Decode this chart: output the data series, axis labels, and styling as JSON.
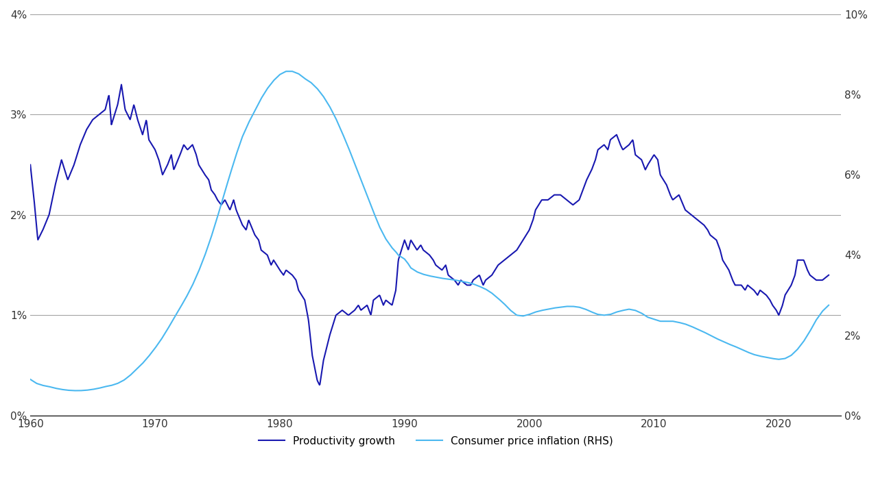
{
  "prod_color": "#1818b0",
  "cpi_color": "#4ab8f0",
  "xlim": [
    1960,
    2025
  ],
  "ylim_left": [
    0,
    0.04
  ],
  "ylim_right": [
    0,
    0.1
  ],
  "yticks_left": [
    0.0,
    0.01,
    0.02,
    0.03,
    0.04
  ],
  "yticks_right": [
    0.0,
    0.02,
    0.04,
    0.06,
    0.08,
    0.1
  ],
  "xticks": [
    1960,
    1970,
    1980,
    1990,
    2000,
    2010,
    2020
  ],
  "legend_labels": [
    "Productivity growth",
    "Consumer price inflation (RHS)"
  ],
  "background_color": "#ffffff",
  "grid_color": "#999999",
  "prod_linewidth": 1.5,
  "cpi_linewidth": 1.5,
  "prod_knots": [
    [
      1960.0,
      0.025
    ],
    [
      1960.3,
      0.0215
    ],
    [
      1960.6,
      0.0175
    ],
    [
      1961.0,
      0.0185
    ],
    [
      1961.5,
      0.02
    ],
    [
      1962.0,
      0.023
    ],
    [
      1962.5,
      0.0255
    ],
    [
      1963.0,
      0.0235
    ],
    [
      1963.5,
      0.025
    ],
    [
      1964.0,
      0.027
    ],
    [
      1964.5,
      0.0285
    ],
    [
      1965.0,
      0.0295
    ],
    [
      1965.5,
      0.03
    ],
    [
      1966.0,
      0.0305
    ],
    [
      1966.3,
      0.032
    ],
    [
      1966.5,
      0.029
    ],
    [
      1967.0,
      0.031
    ],
    [
      1967.3,
      0.033
    ],
    [
      1967.6,
      0.0305
    ],
    [
      1968.0,
      0.0295
    ],
    [
      1968.3,
      0.031
    ],
    [
      1968.6,
      0.0295
    ],
    [
      1969.0,
      0.028
    ],
    [
      1969.3,
      0.0295
    ],
    [
      1969.5,
      0.0275
    ],
    [
      1970.0,
      0.0265
    ],
    [
      1970.3,
      0.0255
    ],
    [
      1970.6,
      0.024
    ],
    [
      1971.0,
      0.025
    ],
    [
      1971.3,
      0.026
    ],
    [
      1971.5,
      0.0245
    ],
    [
      1972.0,
      0.026
    ],
    [
      1972.3,
      0.027
    ],
    [
      1972.6,
      0.0265
    ],
    [
      1973.0,
      0.027
    ],
    [
      1973.3,
      0.026
    ],
    [
      1973.5,
      0.025
    ],
    [
      1974.0,
      0.024
    ],
    [
      1974.3,
      0.0235
    ],
    [
      1974.5,
      0.0225
    ],
    [
      1974.8,
      0.022
    ],
    [
      1975.0,
      0.0215
    ],
    [
      1975.3,
      0.021
    ],
    [
      1975.6,
      0.0215
    ],
    [
      1976.0,
      0.0205
    ],
    [
      1976.3,
      0.0215
    ],
    [
      1976.5,
      0.0205
    ],
    [
      1977.0,
      0.019
    ],
    [
      1977.3,
      0.0185
    ],
    [
      1977.5,
      0.0195
    ],
    [
      1978.0,
      0.018
    ],
    [
      1978.3,
      0.0175
    ],
    [
      1978.5,
      0.0165
    ],
    [
      1979.0,
      0.016
    ],
    [
      1979.3,
      0.015
    ],
    [
      1979.5,
      0.0155
    ],
    [
      1980.0,
      0.0145
    ],
    [
      1980.3,
      0.014
    ],
    [
      1980.5,
      0.0145
    ],
    [
      1981.0,
      0.014
    ],
    [
      1981.3,
      0.0135
    ],
    [
      1981.5,
      0.0125
    ],
    [
      1982.0,
      0.0115
    ],
    [
      1982.3,
      0.0095
    ],
    [
      1982.6,
      0.006
    ],
    [
      1983.0,
      0.0035
    ],
    [
      1983.2,
      0.003
    ],
    [
      1983.5,
      0.0055
    ],
    [
      1984.0,
      0.008
    ],
    [
      1984.5,
      0.01
    ],
    [
      1985.0,
      0.0105
    ],
    [
      1985.5,
      0.01
    ],
    [
      1986.0,
      0.0105
    ],
    [
      1986.3,
      0.011
    ],
    [
      1986.5,
      0.0105
    ],
    [
      1987.0,
      0.011
    ],
    [
      1987.3,
      0.01
    ],
    [
      1987.5,
      0.0115
    ],
    [
      1988.0,
      0.012
    ],
    [
      1988.3,
      0.011
    ],
    [
      1988.5,
      0.0115
    ],
    [
      1989.0,
      0.011
    ],
    [
      1989.3,
      0.0125
    ],
    [
      1989.5,
      0.0155
    ],
    [
      1990.0,
      0.0175
    ],
    [
      1990.3,
      0.0165
    ],
    [
      1990.5,
      0.0175
    ],
    [
      1991.0,
      0.0165
    ],
    [
      1991.3,
      0.017
    ],
    [
      1991.5,
      0.0165
    ],
    [
      1992.0,
      0.016
    ],
    [
      1992.3,
      0.0155
    ],
    [
      1992.5,
      0.015
    ],
    [
      1993.0,
      0.0145
    ],
    [
      1993.3,
      0.015
    ],
    [
      1993.5,
      0.014
    ],
    [
      1994.0,
      0.0135
    ],
    [
      1994.3,
      0.013
    ],
    [
      1994.5,
      0.0135
    ],
    [
      1995.0,
      0.013
    ],
    [
      1995.3,
      0.013
    ],
    [
      1995.5,
      0.0135
    ],
    [
      1996.0,
      0.014
    ],
    [
      1996.3,
      0.013
    ],
    [
      1996.5,
      0.0135
    ],
    [
      1997.0,
      0.014
    ],
    [
      1997.5,
      0.015
    ],
    [
      1998.0,
      0.0155
    ],
    [
      1998.5,
      0.016
    ],
    [
      1999.0,
      0.0165
    ],
    [
      1999.5,
      0.0175
    ],
    [
      2000.0,
      0.0185
    ],
    [
      2000.3,
      0.0195
    ],
    [
      2000.5,
      0.0205
    ],
    [
      2001.0,
      0.0215
    ],
    [
      2001.5,
      0.0215
    ],
    [
      2002.0,
      0.022
    ],
    [
      2002.5,
      0.022
    ],
    [
      2003.0,
      0.0215
    ],
    [
      2003.5,
      0.021
    ],
    [
      2004.0,
      0.0215
    ],
    [
      2004.3,
      0.0225
    ],
    [
      2004.6,
      0.0235
    ],
    [
      2005.0,
      0.0245
    ],
    [
      2005.3,
      0.0255
    ],
    [
      2005.5,
      0.0265
    ],
    [
      2006.0,
      0.027
    ],
    [
      2006.3,
      0.0265
    ],
    [
      2006.5,
      0.0275
    ],
    [
      2007.0,
      0.028
    ],
    [
      2007.3,
      0.027
    ],
    [
      2007.5,
      0.0265
    ],
    [
      2008.0,
      0.027
    ],
    [
      2008.3,
      0.0275
    ],
    [
      2008.5,
      0.026
    ],
    [
      2009.0,
      0.0255
    ],
    [
      2009.3,
      0.0245
    ],
    [
      2009.5,
      0.025
    ],
    [
      2010.0,
      0.026
    ],
    [
      2010.3,
      0.0255
    ],
    [
      2010.5,
      0.024
    ],
    [
      2011.0,
      0.023
    ],
    [
      2011.3,
      0.022
    ],
    [
      2011.5,
      0.0215
    ],
    [
      2012.0,
      0.022
    ],
    [
      2012.5,
      0.0205
    ],
    [
      2013.0,
      0.02
    ],
    [
      2013.5,
      0.0195
    ],
    [
      2014.0,
      0.019
    ],
    [
      2014.3,
      0.0185
    ],
    [
      2014.5,
      0.018
    ],
    [
      2015.0,
      0.0175
    ],
    [
      2015.3,
      0.0165
    ],
    [
      2015.5,
      0.0155
    ],
    [
      2016.0,
      0.0145
    ],
    [
      2016.3,
      0.0135
    ],
    [
      2016.5,
      0.013
    ],
    [
      2017.0,
      0.013
    ],
    [
      2017.3,
      0.0125
    ],
    [
      2017.5,
      0.013
    ],
    [
      2018.0,
      0.0125
    ],
    [
      2018.3,
      0.012
    ],
    [
      2018.5,
      0.0125
    ],
    [
      2019.0,
      0.012
    ],
    [
      2019.3,
      0.0115
    ],
    [
      2019.5,
      0.011
    ],
    [
      2019.8,
      0.0105
    ],
    [
      2020.0,
      0.01
    ],
    [
      2020.3,
      0.011
    ],
    [
      2020.5,
      0.012
    ],
    [
      2021.0,
      0.013
    ],
    [
      2021.3,
      0.014
    ],
    [
      2021.5,
      0.0155
    ],
    [
      2022.0,
      0.0155
    ],
    [
      2022.3,
      0.0145
    ],
    [
      2022.5,
      0.014
    ],
    [
      2023.0,
      0.0135
    ],
    [
      2023.5,
      0.0135
    ],
    [
      2024.0,
      0.014
    ]
  ],
  "cpi_knots": [
    [
      1960.0,
      0.009
    ],
    [
      1960.5,
      0.008
    ],
    [
      1961.0,
      0.0075
    ],
    [
      1961.5,
      0.0072
    ],
    [
      1962.0,
      0.0068
    ],
    [
      1962.5,
      0.0065
    ],
    [
      1963.0,
      0.0063
    ],
    [
      1963.5,
      0.0062
    ],
    [
      1964.0,
      0.0062
    ],
    [
      1964.5,
      0.0063
    ],
    [
      1965.0,
      0.0065
    ],
    [
      1965.5,
      0.0068
    ],
    [
      1966.0,
      0.0072
    ],
    [
      1966.5,
      0.0075
    ],
    [
      1967.0,
      0.008
    ],
    [
      1967.5,
      0.0088
    ],
    [
      1968.0,
      0.01
    ],
    [
      1968.5,
      0.0115
    ],
    [
      1969.0,
      0.013
    ],
    [
      1969.5,
      0.0148
    ],
    [
      1970.0,
      0.0168
    ],
    [
      1970.5,
      0.019
    ],
    [
      1971.0,
      0.0215
    ],
    [
      1971.5,
      0.0242
    ],
    [
      1972.0,
      0.0268
    ],
    [
      1972.5,
      0.0295
    ],
    [
      1973.0,
      0.0325
    ],
    [
      1973.5,
      0.036
    ],
    [
      1974.0,
      0.04
    ],
    [
      1974.5,
      0.0445
    ],
    [
      1975.0,
      0.0495
    ],
    [
      1975.5,
      0.0548
    ],
    [
      1976.0,
      0.06
    ],
    [
      1976.5,
      0.065
    ],
    [
      1977.0,
      0.0695
    ],
    [
      1977.5,
      0.073
    ],
    [
      1978.0,
      0.076
    ],
    [
      1978.5,
      0.079
    ],
    [
      1979.0,
      0.0815
    ],
    [
      1979.5,
      0.0835
    ],
    [
      1980.0,
      0.085
    ],
    [
      1980.5,
      0.0858
    ],
    [
      1981.0,
      0.0858
    ],
    [
      1981.5,
      0.0852
    ],
    [
      1982.0,
      0.084
    ],
    [
      1982.5,
      0.083
    ],
    [
      1983.0,
      0.0815
    ],
    [
      1983.5,
      0.0795
    ],
    [
      1984.0,
      0.077
    ],
    [
      1984.5,
      0.074
    ],
    [
      1985.0,
      0.0705
    ],
    [
      1985.5,
      0.0668
    ],
    [
      1986.0,
      0.0628
    ],
    [
      1986.5,
      0.0588
    ],
    [
      1987.0,
      0.0548
    ],
    [
      1987.5,
      0.0508
    ],
    [
      1988.0,
      0.047
    ],
    [
      1988.5,
      0.044
    ],
    [
      1989.0,
      0.0418
    ],
    [
      1989.3,
      0.0408
    ],
    [
      1989.5,
      0.04
    ],
    [
      1990.0,
      0.039
    ],
    [
      1990.3,
      0.0378
    ],
    [
      1990.5,
      0.0368
    ],
    [
      1991.0,
      0.0358
    ],
    [
      1991.5,
      0.0352
    ],
    [
      1992.0,
      0.0348
    ],
    [
      1992.5,
      0.0345
    ],
    [
      1993.0,
      0.0342
    ],
    [
      1993.5,
      0.034
    ],
    [
      1994.0,
      0.0338
    ],
    [
      1994.5,
      0.0335
    ],
    [
      1995.0,
      0.0332
    ],
    [
      1995.5,
      0.0328
    ],
    [
      1996.0,
      0.0322
    ],
    [
      1996.5,
      0.0315
    ],
    [
      1997.0,
      0.0305
    ],
    [
      1997.5,
      0.0292
    ],
    [
      1998.0,
      0.0278
    ],
    [
      1998.5,
      0.0262
    ],
    [
      1999.0,
      0.025
    ],
    [
      1999.5,
      0.0248
    ],
    [
      2000.0,
      0.0252
    ],
    [
      2000.5,
      0.0258
    ],
    [
      2001.0,
      0.0262
    ],
    [
      2001.5,
      0.0265
    ],
    [
      2002.0,
      0.0268
    ],
    [
      2002.5,
      0.027
    ],
    [
      2003.0,
      0.0272
    ],
    [
      2003.5,
      0.0272
    ],
    [
      2004.0,
      0.027
    ],
    [
      2004.5,
      0.0265
    ],
    [
      2005.0,
      0.0258
    ],
    [
      2005.5,
      0.0252
    ],
    [
      2006.0,
      0.025
    ],
    [
      2006.5,
      0.0252
    ],
    [
      2007.0,
      0.0258
    ],
    [
      2007.5,
      0.0262
    ],
    [
      2008.0,
      0.0265
    ],
    [
      2008.5,
      0.0262
    ],
    [
      2009.0,
      0.0255
    ],
    [
      2009.5,
      0.0245
    ],
    [
      2010.0,
      0.024
    ],
    [
      2010.5,
      0.0235
    ],
    [
      2011.0,
      0.0235
    ],
    [
      2011.5,
      0.0235
    ],
    [
      2012.0,
      0.0232
    ],
    [
      2012.5,
      0.0228
    ],
    [
      2013.0,
      0.0222
    ],
    [
      2013.5,
      0.0215
    ],
    [
      2014.0,
      0.0208
    ],
    [
      2014.5,
      0.02
    ],
    [
      2015.0,
      0.0192
    ],
    [
      2015.5,
      0.0185
    ],
    [
      2016.0,
      0.0178
    ],
    [
      2016.5,
      0.0172
    ],
    [
      2017.0,
      0.0165
    ],
    [
      2017.5,
      0.0158
    ],
    [
      2018.0,
      0.0152
    ],
    [
      2018.5,
      0.0148
    ],
    [
      2019.0,
      0.0145
    ],
    [
      2019.5,
      0.0142
    ],
    [
      2020.0,
      0.014
    ],
    [
      2020.5,
      0.0142
    ],
    [
      2021.0,
      0.015
    ],
    [
      2021.5,
      0.0165
    ],
    [
      2022.0,
      0.0185
    ],
    [
      2022.5,
      0.021
    ],
    [
      2023.0,
      0.0238
    ],
    [
      2023.5,
      0.026
    ],
    [
      2024.0,
      0.0275
    ]
  ]
}
